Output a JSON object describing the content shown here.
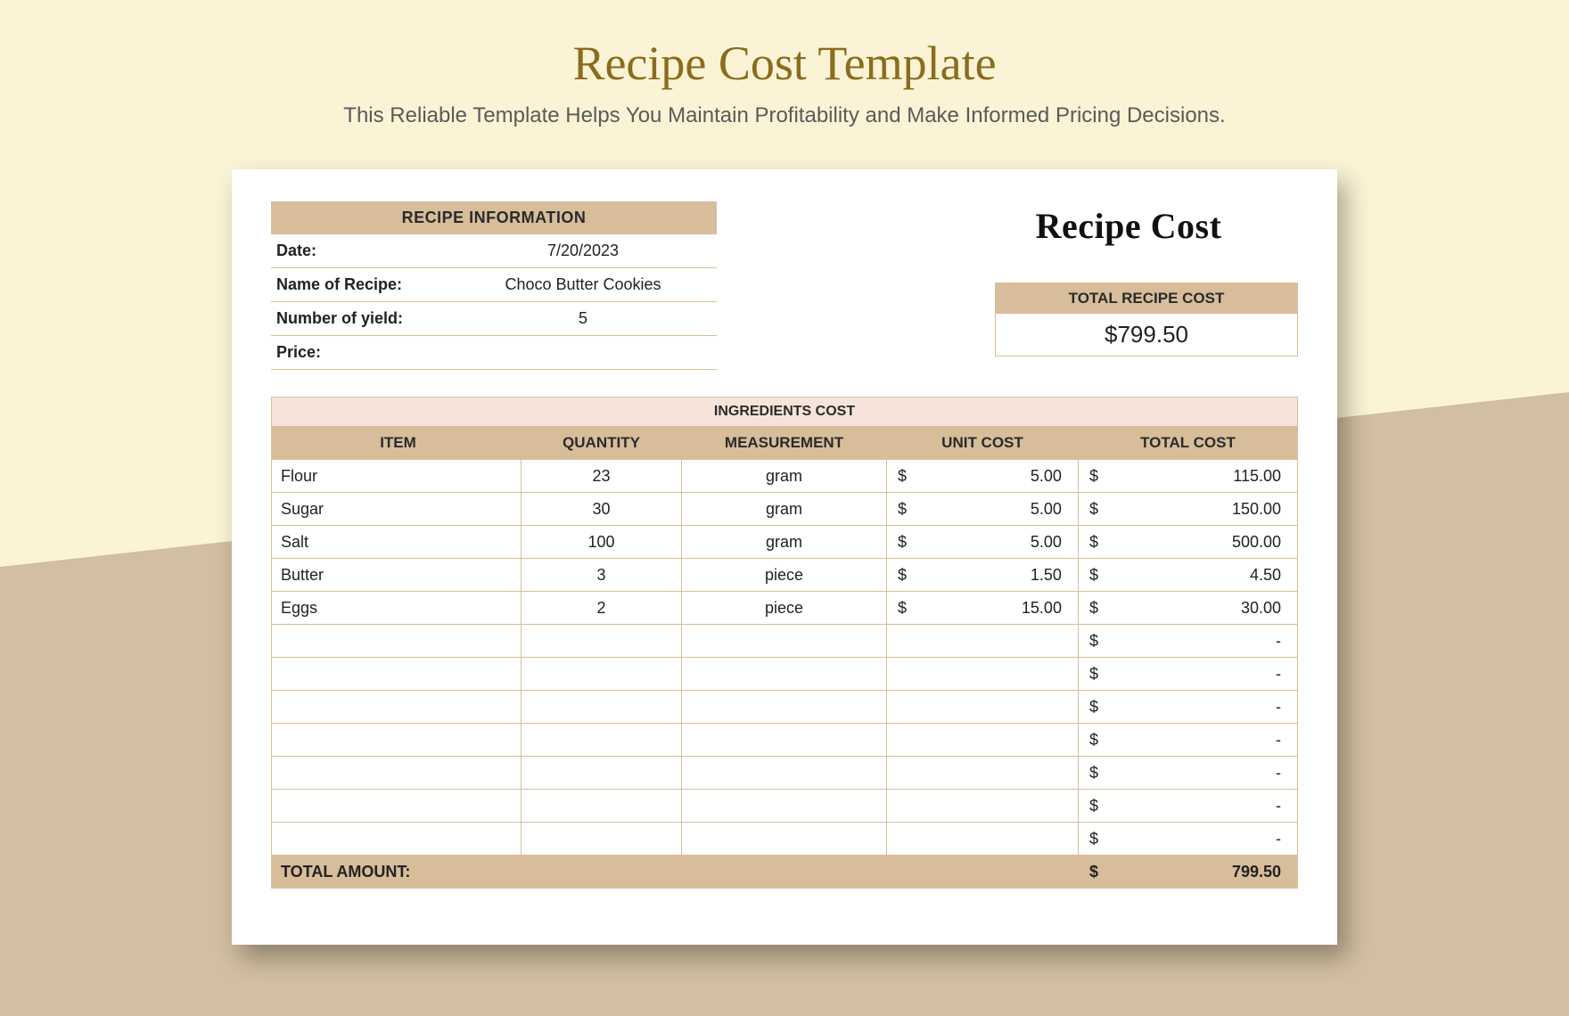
{
  "colors": {
    "page_bg": "#fbf3d5",
    "diag_bg": "#d2bea0",
    "sheet_bg": "#ffffff",
    "header_bg": "#d8bd9a",
    "ing_title_bg": "#f6e4db",
    "title_color": "#8a6c1e",
    "subtitle_color": "#5a5a5a",
    "border_color": "#d8bd9a"
  },
  "header": {
    "title": "Recipe Cost Template",
    "subtitle": "This Reliable Template Helps You Maintain Profitability and Make Informed Pricing Decisions."
  },
  "info": {
    "header": "RECIPE INFORMATION",
    "rows": [
      {
        "label": "Date:",
        "value": "7/20/2023"
      },
      {
        "label": "Name of Recipe:",
        "value": "Choco Butter Cookies"
      },
      {
        "label": "Number of yield:",
        "value": "5"
      },
      {
        "label": "Price:",
        "value": ""
      }
    ]
  },
  "recipe_cost_title": "Recipe Cost",
  "total_box": {
    "header": "TOTAL RECIPE COST",
    "value": "$799.50"
  },
  "ingredients": {
    "title": "INGREDIENTS COST",
    "columns": [
      "ITEM",
      "QUANTITY",
      "MEASUREMENT",
      "UNIT COST",
      "TOTAL COST"
    ],
    "rows": [
      {
        "item": "Flour",
        "qty": "23",
        "meas": "gram",
        "unit": "5.00",
        "total": "115.00"
      },
      {
        "item": "Sugar",
        "qty": "30",
        "meas": "gram",
        "unit": "5.00",
        "total": "150.00"
      },
      {
        "item": "Salt",
        "qty": "100",
        "meas": "gram",
        "unit": "5.00",
        "total": "500.00"
      },
      {
        "item": "Butter",
        "qty": "3",
        "meas": "piece",
        "unit": "1.50",
        "total": "4.50"
      },
      {
        "item": "Eggs",
        "qty": "2",
        "meas": "piece",
        "unit": "15.00",
        "total": "30.00"
      },
      {
        "item": "",
        "qty": "",
        "meas": "",
        "unit": "",
        "total": "-"
      },
      {
        "item": "",
        "qty": "",
        "meas": "",
        "unit": "",
        "total": "-"
      },
      {
        "item": "",
        "qty": "",
        "meas": "",
        "unit": "",
        "total": "-"
      },
      {
        "item": "",
        "qty": "",
        "meas": "",
        "unit": "",
        "total": "-"
      },
      {
        "item": "",
        "qty": "",
        "meas": "",
        "unit": "",
        "total": "-"
      },
      {
        "item": "",
        "qty": "",
        "meas": "",
        "unit": "",
        "total": "-"
      },
      {
        "item": "",
        "qty": "",
        "meas": "",
        "unit": "",
        "total": "-"
      }
    ],
    "total_label": "TOTAL AMOUNT:",
    "total_value": "799.50",
    "currency": "$"
  }
}
